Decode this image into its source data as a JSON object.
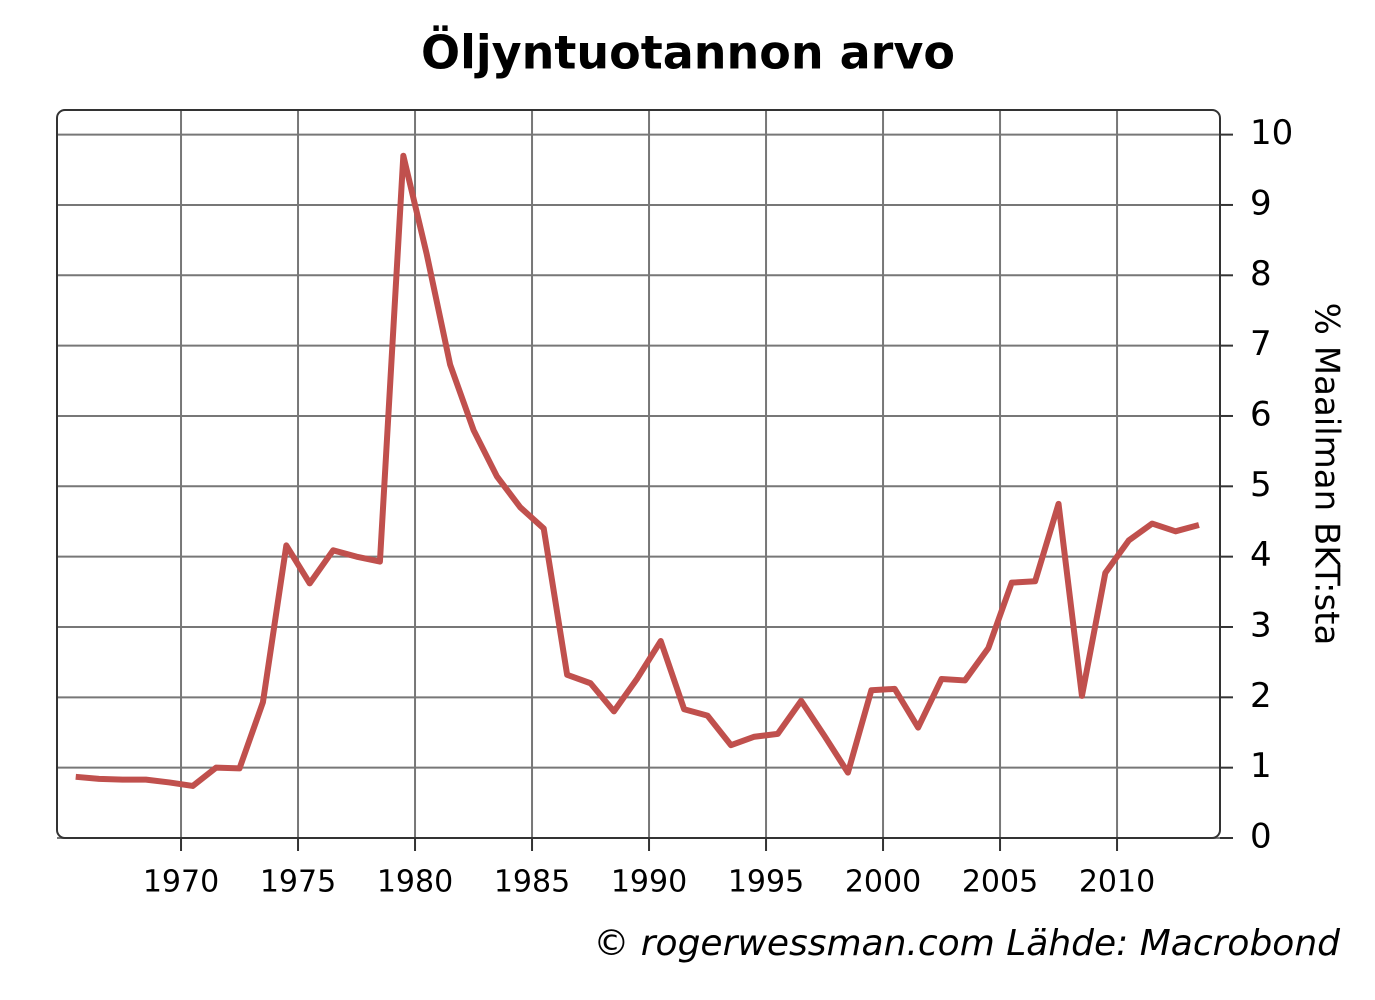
{
  "chart_data": {
    "type": "line",
    "title": "Öljyntuotannon arvo",
    "y_label": "% Maailman BKT:sta",
    "source": "© rogerwessman.com Lähde: Macrobond",
    "x": [
      1965.5,
      1966.5,
      1967.5,
      1968.5,
      1969.5,
      1970.5,
      1971.5,
      1972.5,
      1973.5,
      1974.5,
      1975.5,
      1976.5,
      1977.5,
      1978.5,
      1979.5,
      1980.5,
      1981.5,
      1982.5,
      1983.5,
      1984.5,
      1985.5,
      1986.5,
      1987.5,
      1988.5,
      1989.5,
      1990.5,
      1991.5,
      1992.5,
      1993.5,
      1994.5,
      1995.5,
      1996.5,
      1997.5,
      1998.5,
      1999.5,
      2000.5,
      2001.5,
      2002.5,
      2003.5,
      2004.5,
      2005.5,
      2006.5,
      2007.5,
      2008.5,
      2009.5,
      2010.5,
      2011.5,
      2012.5,
      2013.5
    ],
    "series": [
      {
        "name": "Öljyntuotannon arvo",
        "color": "#c0504d",
        "values": [
          0.87,
          0.84,
          0.83,
          0.83,
          0.79,
          0.74,
          1.0,
          0.99,
          1.93,
          4.16,
          3.62,
          4.09,
          4.0,
          3.93,
          9.7,
          8.3,
          6.73,
          5.8,
          5.14,
          4.7,
          4.4,
          2.32,
          2.2,
          1.8,
          2.27,
          2.8,
          1.83,
          1.74,
          1.32,
          1.44,
          1.48,
          1.95,
          1.45,
          0.93,
          2.1,
          2.12,
          1.57,
          2.26,
          2.24,
          2.7,
          3.63,
          3.65,
          4.75,
          2.02,
          3.77,
          4.23,
          4.47,
          4.36,
          4.45
        ]
      }
    ],
    "xlim": [
      1964.7,
      2014.4
    ],
    "xticks": [
      1970,
      1975,
      1980,
      1985,
      1990,
      1995,
      2000,
      2005,
      2010
    ],
    "ylim": [
      0,
      10.35
    ],
    "yticks": [
      0,
      1,
      2,
      3,
      4,
      5,
      6,
      7,
      8,
      9,
      10
    ],
    "grid": true
  }
}
